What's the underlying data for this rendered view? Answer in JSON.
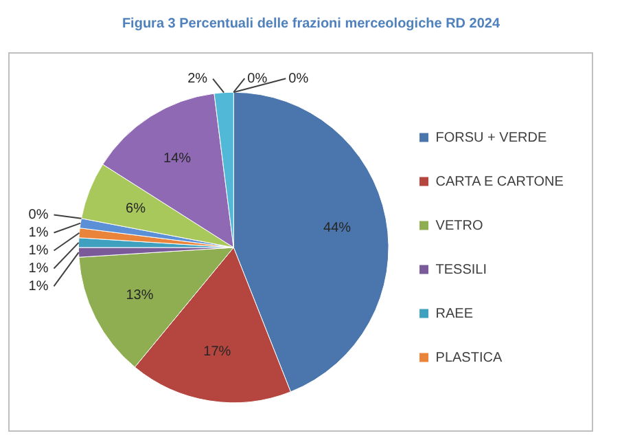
{
  "chart_data": {
    "type": "pie",
    "title": "Figura 3 Percentuali delle frazioni merceologiche RD 2024",
    "categories": [
      "FORSU + VERDE",
      "CARTA E CARTONE",
      "VETRO",
      "TESSILI",
      "RAEE",
      "PLASTICA",
      null,
      null,
      null,
      null,
      null,
      null,
      null
    ],
    "values": [
      44,
      17,
      13,
      1,
      1,
      1,
      1,
      0,
      6,
      14,
      2,
      0,
      0
    ],
    "colors": [
      "#4a76ad",
      "#b4463f",
      "#8fae52",
      "#7a5a99",
      "#3fa1bf",
      "#e9843a",
      "#5b8fd6",
      "#d9625e",
      "#a8c85c",
      "#8f69b3",
      "#52b8d8",
      "#f5a35b",
      "#a6a6a6"
    ],
    "value_labels": [
      "44%",
      "17%",
      "13%",
      "1%",
      "1%",
      "1%",
      "1%",
      "0%",
      "6%",
      "14%",
      "2%",
      "0%",
      "0%"
    ],
    "legend": "right"
  }
}
